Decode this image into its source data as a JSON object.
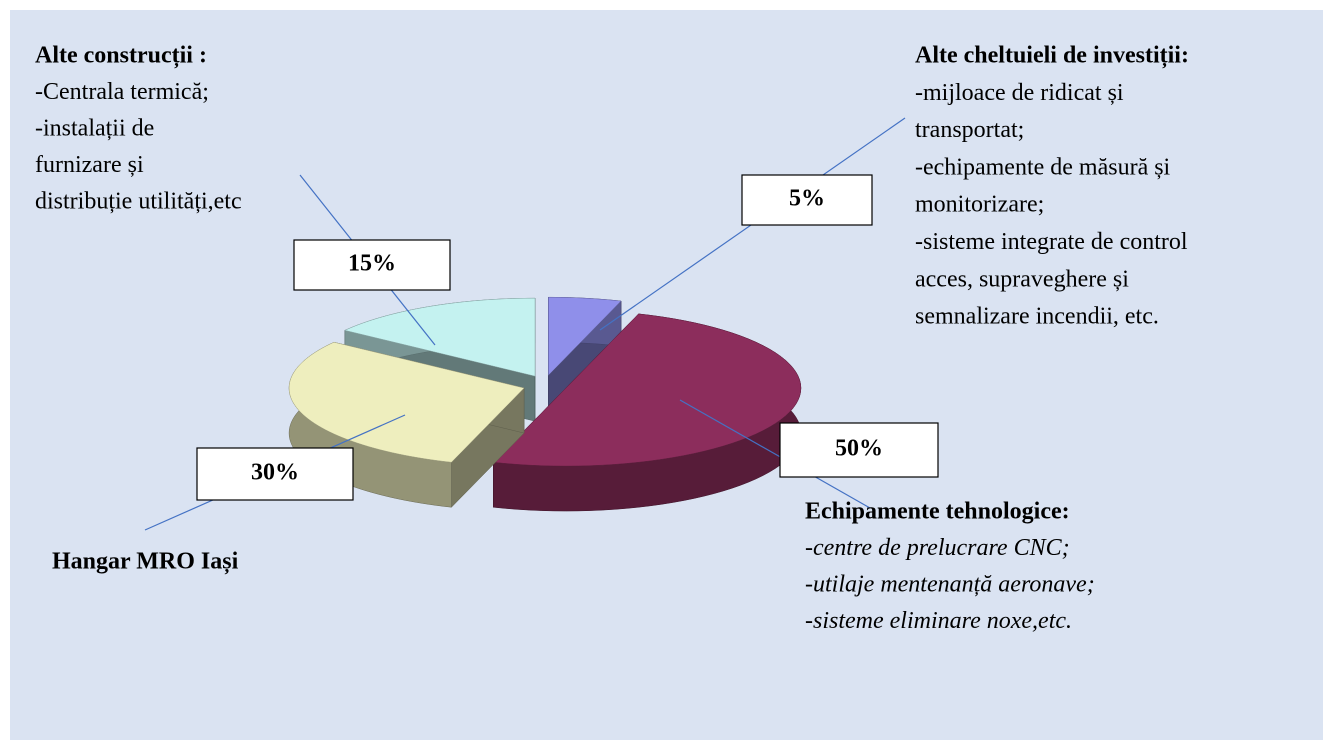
{
  "chart_data": {
    "type": "pie",
    "categories": [
      "Alte cheltuieli de investiții:",
      "Echipamente tehnologice:",
      "Hangar MRO Iași",
      "Alte construcții :"
    ],
    "values": [
      5,
      50,
      30,
      15
    ],
    "value_labels": [
      "5%",
      "50%",
      "30%",
      "15%"
    ],
    "colors": [
      "#8f8fea",
      "#8c2d5c",
      "#eeeebe",
      "#c4f2f0"
    ],
    "descriptions": [
      [
        "-mijloace de ridicat și",
        "transportat;",
        "-echipamente de măsură și",
        "monitorizare;",
        "-sisteme integrate de control",
        "acces, supraveghere și",
        "semnalizare incendii, etc."
      ],
      [
        "-centre de prelucrare CNC;",
        "-utilaje mentenanță aeronave;",
        "-sisteme eliminare noxe,etc."
      ],
      [],
      [
        "-Centrala termică;",
        "-instalații de",
        "furnizare și",
        "distribuție utilități,etc"
      ]
    ]
  }
}
